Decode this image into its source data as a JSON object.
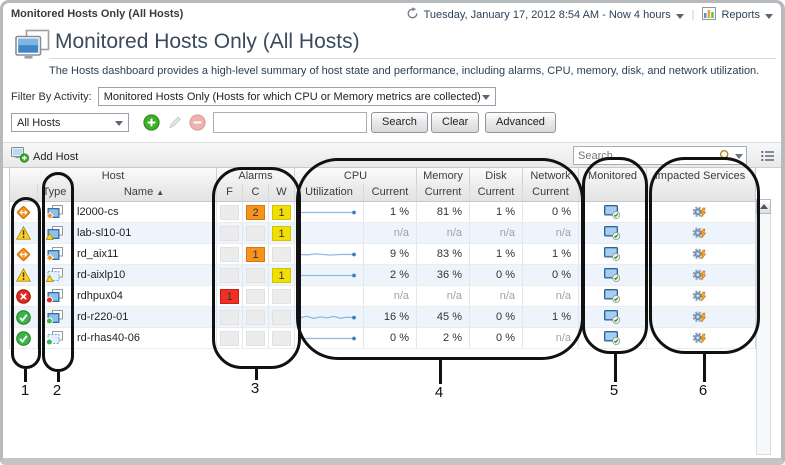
{
  "breadcrumb": "Monitored Hosts Only (All Hosts)",
  "topbar": {
    "time_range": "Tuesday, January 17, 2012 8:54 AM - Now 4 hours",
    "reports_label": "Reports"
  },
  "page": {
    "title": "Monitored Hosts Only (All Hosts)",
    "description": "The Hosts dashboard provides a high-level summary of host state and performance, including alarms, CPU, memory, disk, and network utilization."
  },
  "filter": {
    "label": "Filter By Activity:",
    "value": "Monitored Hosts Only (Hosts for which CPU or Memory metrics are collected)"
  },
  "toolbar": {
    "scope_value": "All Hosts",
    "search_button": "Search",
    "clear_button": "Clear",
    "advanced_button": "Advanced"
  },
  "table_toolbar": {
    "add_host": "Add Host",
    "search_placeholder": "Search"
  },
  "table": {
    "headers": {
      "host": "Host",
      "alarms": "Alarms",
      "cpu": "CPU",
      "memory": "Memory",
      "disk": "Disk",
      "network": "Network",
      "monitored": "Monitored",
      "impacted_services": "Impacted Services",
      "type": "Type",
      "name": "Name",
      "sort_arrow": "▲",
      "fatal": "F",
      "critical": "C",
      "warning": "W",
      "utilization": "Utilization",
      "current": "Current"
    },
    "rows": [
      {
        "name": "l2000-cs",
        "status": "critical",
        "type_icon": "host-icon",
        "type_badge": "critical-diamond",
        "alarms": {
          "f": "",
          "c": "2",
          "w": "1"
        },
        "spark": [
          5,
          5,
          5,
          5,
          5,
          5,
          5,
          5
        ],
        "cpu": "1 %",
        "memory": "81 %",
        "disk": "1 %",
        "network": "0 %",
        "monitored": true,
        "impacted": true
      },
      {
        "name": "lab-sl10-01",
        "status": "warning",
        "type_icon": "host-icon",
        "type_badge": "warning-triangle",
        "alarms": {
          "f": "",
          "c": "",
          "w": "1"
        },
        "spark": null,
        "cpu": "n/a",
        "memory": "n/a",
        "disk": "n/a",
        "network": "n/a",
        "monitored": true,
        "impacted": true
      },
      {
        "name": "rd_aix11",
        "status": "critical",
        "type_icon": "host-icon",
        "type_badge": "critical-diamond",
        "alarms": {
          "f": "",
          "c": "1",
          "w": ""
        },
        "spark": [
          5,
          5.2,
          4.6,
          5,
          5.4,
          5,
          4.9,
          5
        ],
        "cpu": "9 %",
        "memory": "83 %",
        "disk": "1 %",
        "network": "1 %",
        "monitored": true,
        "impacted": true
      },
      {
        "name": "rd-aixlp10",
        "status": "warning",
        "type_icon": "host-dashed-icon",
        "type_badge": "warning-triangle",
        "alarms": {
          "f": "",
          "c": "",
          "w": "1"
        },
        "spark": [
          5,
          5,
          5,
          5,
          5,
          5,
          5,
          5
        ],
        "cpu": "2 %",
        "memory": "36 %",
        "disk": "0 %",
        "network": "0 %",
        "monitored": true,
        "impacted": true
      },
      {
        "name": "rdhpux04",
        "status": "fatal",
        "type_icon": "host-icon",
        "type_badge": "fatal-dot",
        "alarms": {
          "f": "1",
          "c": "",
          "w": ""
        },
        "spark": null,
        "cpu": "n/a",
        "memory": "n/a",
        "disk": "n/a",
        "network": "n/a",
        "monitored": true,
        "impacted": true
      },
      {
        "name": "rd-r220-01",
        "status": "normal",
        "type_icon": "host-icon",
        "type_badge": "normal-dot",
        "alarms": {
          "f": "",
          "c": "",
          "w": ""
        },
        "spark": [
          5.2,
          4.2,
          5.6,
          4.6,
          5.3,
          4.3,
          5.5,
          4.8,
          5.1
        ],
        "cpu": "16 %",
        "memory": "45 %",
        "disk": "0 %",
        "network": "1 %",
        "monitored": true,
        "impacted": true
      },
      {
        "name": "rd-rhas40-06",
        "status": "normal",
        "type_icon": "host-dashed-icon",
        "type_badge": "normal-dot",
        "alarms": {
          "f": "",
          "c": "",
          "w": ""
        },
        "spark": [
          5,
          5,
          5,
          5,
          5,
          5,
          5,
          5
        ],
        "cpu": "0 %",
        "memory": "2 %",
        "disk": "0 %",
        "network": "n/a",
        "monitored": true,
        "impacted": true
      }
    ]
  },
  "callouts": {
    "labels": [
      "1",
      "2",
      "3",
      "4",
      "5",
      "6"
    ]
  },
  "colors": {
    "alarm_fatal": "#EE3124",
    "alarm_critical": "#F6921E",
    "alarm_warning": "#F2DE07",
    "sparkline": "#8FBBE3",
    "sparkline_dot": "#3F7FC1",
    "row_alt": "#EDF4FB"
  }
}
